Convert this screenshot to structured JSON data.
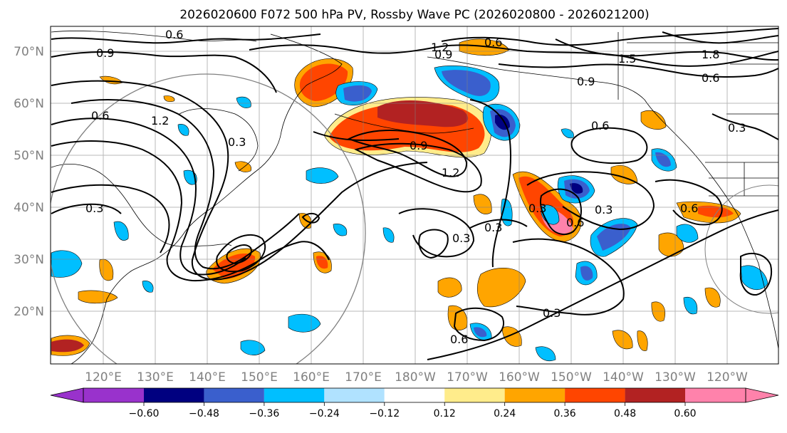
{
  "title": "2026020600 F072 500 hPa PV, Rossby Wave PC (2026020800 - 2026021200)",
  "lat_labels": [
    "70°N",
    "60°N",
    "50°N",
    "40°N",
    "30°N",
    "20°N"
  ],
  "lon_labels": [
    "120°E",
    "130°E",
    "140°E",
    "150°E",
    "160°E",
    "170°E",
    "180°W",
    "170°W",
    "160°W",
    "150°W",
    "140°W",
    "130°W",
    "120°W"
  ],
  "contour_labels": [
    "0.6",
    "0.9",
    "0.6",
    "1.2",
    "0.3",
    "0.9",
    "0.6",
    "1.2",
    "0.9",
    "1.5",
    "1.8",
    "0.6",
    "0.9",
    "0.6",
    "0.3",
    "1.2",
    "0.6",
    "0.3",
    "0.3",
    "0.3",
    "0.3",
    "0.3",
    "0.3",
    "0.6",
    "0.6"
  ],
  "colorbar": {
    "colors": [
      "#9932CC",
      "#000080",
      "#3A5FCD",
      "#00BFFF",
      "#B0E2FF",
      "#FFFFFF",
      "#FFEC8B",
      "#FFA500",
      "#FF4500",
      "#B22222",
      "#FF82AB"
    ],
    "tick_labels": [
      "−0.60",
      "−0.48",
      "−0.36",
      "−0.24",
      "−0.12",
      "0.12",
      "0.24",
      "0.36",
      "0.48",
      "0.60"
    ]
  }
}
